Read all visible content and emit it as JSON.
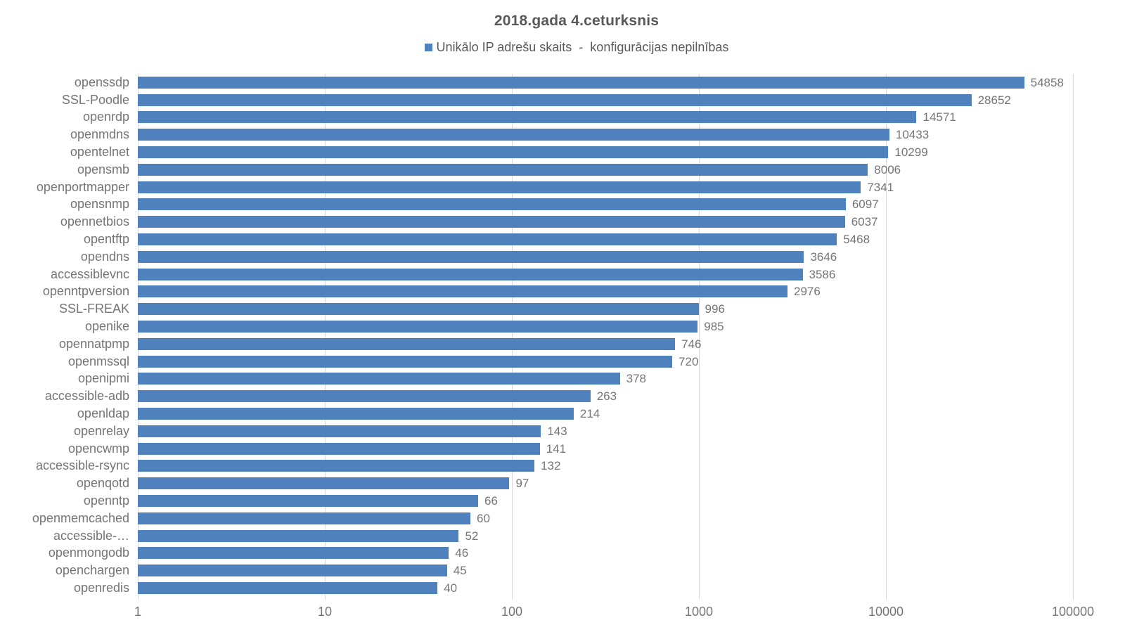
{
  "chart_data": {
    "type": "bar",
    "orientation": "horizontal",
    "title": "2018.gada 4.ceturksnis",
    "legend": "Unikālo IP adrešu skaits  -  konfigurācijas nepilnības",
    "legend_position": "top",
    "categories": [
      "openssdp",
      "SSL-Poodle",
      "openrdp",
      "openmdns",
      "opentelnet",
      "opensmb",
      "openportmapper",
      "opensnmp",
      "opennetbios",
      "opentftp",
      "opendns",
      "accessiblevnc",
      "openntpversion",
      "SSL-FREAK",
      "openike",
      "opennatpmp",
      "openmssql",
      "openipmi",
      "accessible-adb",
      "openldap",
      "openrelay",
      "opencwmp",
      "accessible-rsync",
      "openqotd",
      "openntp",
      "openmemcached",
      "accessible-…",
      "openmongodb",
      "openchargen",
      "openredis"
    ],
    "values": [
      54858,
      28652,
      14571,
      10433,
      10299,
      8006,
      7341,
      6097,
      6037,
      5468,
      3646,
      3586,
      2976,
      996,
      985,
      746,
      720,
      378,
      263,
      214,
      143,
      141,
      132,
      97,
      66,
      60,
      52,
      46,
      45,
      40
    ],
    "data_labels": true,
    "xlabel": "",
    "ylabel": "",
    "x_axis": {
      "scale": "log",
      "range": [
        1,
        100000
      ],
      "tick_labels": [
        "1",
        "10",
        "100",
        "1000",
        "10000",
        "100000"
      ]
    },
    "grid": true
  },
  "colors": {
    "bar": "#4f81bd",
    "title_text": "#595959",
    "legend_text": "#595959",
    "axis_text": "#757575",
    "gridline": "#d9d9d9",
    "background": "#ffffff"
  }
}
